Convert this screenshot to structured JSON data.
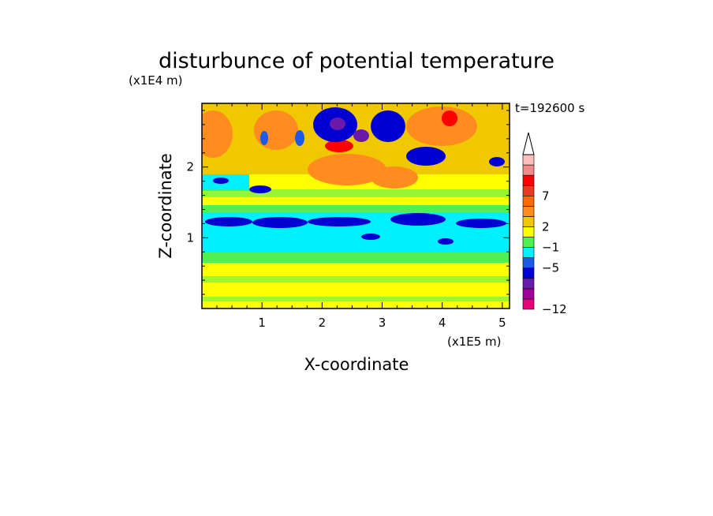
{
  "chart_data": {
    "type": "heatmap",
    "title": "disturbunce of potential temperature",
    "xlabel": "X-coordinate",
    "ylabel": "Z-coordinate",
    "x_unit": "(x1E5 m)",
    "y_unit": "(x1E4 m)",
    "time_label": "t=192600 s",
    "xlim": [
      0,
      5.12
    ],
    "ylim": [
      0,
      2.9
    ],
    "x_ticks": [
      "1",
      "2",
      "3",
      "4",
      "5"
    ],
    "y_ticks": [
      "1",
      "2"
    ],
    "colorbar": {
      "labels": [
        "7",
        "2",
        "−1",
        "−5",
        "−12"
      ],
      "colors": [
        "#e6007a",
        "#a0009a",
        "#6a1aa8",
        "#0000d0",
        "#1d5be6",
        "#00f0ff",
        "#50f050",
        "#ffff00",
        "#f0c800",
        "#ff8c1e",
        "#ff6a00",
        "#e63c1e",
        "#ff0000",
        "#f08a8a",
        "#ffbebe"
      ]
    }
  }
}
